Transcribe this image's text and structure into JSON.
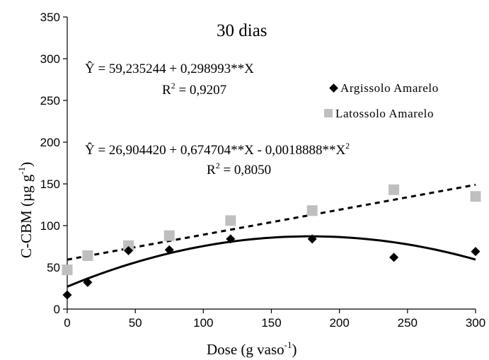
{
  "chart_data": {
    "type": "scatter",
    "title": "30 dias",
    "xlabel": "Dose (g vaso",
    "xlabel_sup": "-1",
    "xlabel_close": ")",
    "ylabel": "C-CBM (µg g",
    "ylabel_sup": "-1",
    "ylabel_close": ")",
    "xlim": [
      0,
      300
    ],
    "ylim": [
      0,
      350
    ],
    "x_ticks": [
      "0",
      "50",
      "100",
      "150",
      "200",
      "250",
      "300"
    ],
    "y_ticks": [
      "0",
      "50",
      "100",
      "150",
      "200",
      "250",
      "300",
      "350"
    ],
    "grid": false,
    "legend_position": "right",
    "series": [
      {
        "name": "Argissolo Amarelo",
        "marker": "diamond",
        "color": "#000000",
        "x": [
          0,
          15,
          45,
          75,
          120,
          180,
          240,
          300
        ],
        "y": [
          17,
          32,
          70,
          71,
          84,
          84,
          62,
          69
        ],
        "fit": {
          "type": "quadratic",
          "a": 26.90442,
          "b": 0.674704,
          "c": -0.0018888,
          "line": "solid"
        }
      },
      {
        "name": "Latossolo Amarelo",
        "marker": "square",
        "color": "#bfbfbf",
        "x": [
          0,
          15,
          45,
          75,
          120,
          180,
          240,
          300
        ],
        "y": [
          47,
          64,
          76,
          88,
          106,
          118,
          143,
          135
        ],
        "fit": {
          "type": "linear",
          "a": 59.235244,
          "b": 0.298993,
          "line": "dashed"
        }
      }
    ],
    "annotations": {
      "eq_linear": "Ŷ = 59,235244 + 0,298993**X",
      "r2_linear_prefix": "R",
      "r2_linear_value": " = 0,9207",
      "eq_quad": "Ŷ = 26,904420 + 0,674704**X - 0,0018888**X",
      "r2_quad_prefix": "R",
      "r2_quad_value": " = 0,8050",
      "sup2": "2"
    }
  }
}
